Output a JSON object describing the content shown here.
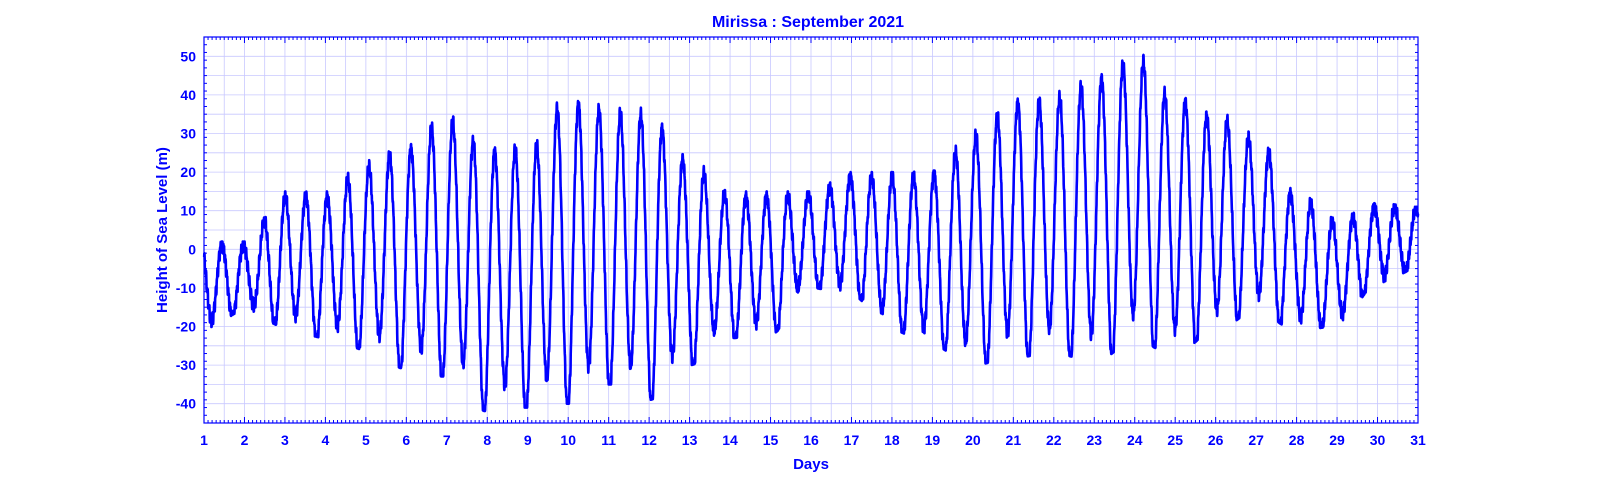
{
  "chart_data": {
    "type": "line",
    "title": "Mirissa  : September 2021",
    "xlabel": "Days",
    "ylabel": "Height of Sea Level (m)",
    "xlim": [
      1,
      31
    ],
    "ylim": [
      -45,
      55
    ],
    "x_ticks": [
      1,
      2,
      3,
      4,
      5,
      6,
      7,
      8,
      9,
      10,
      11,
      12,
      13,
      14,
      15,
      16,
      17,
      18,
      19,
      20,
      21,
      22,
      23,
      24,
      25,
      26,
      27,
      28,
      29,
      30,
      31
    ],
    "y_ticks": [
      -40,
      -30,
      -20,
      -10,
      0,
      10,
      20,
      30,
      40,
      50
    ],
    "grid": true,
    "colors": {
      "series": "#0000ff",
      "grid": "#c8c8ff",
      "axes": "#0000ff"
    },
    "series": [
      {
        "day_extremes": [
          [
            1,
            -21,
            2
          ],
          [
            2,
            -16,
            2
          ],
          [
            3,
            -20,
            15
          ],
          [
            4,
            -23,
            15
          ],
          [
            5,
            -26,
            23
          ],
          [
            6,
            -31,
            28
          ],
          [
            7,
            -33,
            36
          ],
          [
            8,
            -42,
            28
          ],
          [
            9,
            -41,
            28
          ],
          [
            10,
            -40,
            41
          ],
          [
            11,
            -35,
            38
          ],
          [
            12,
            -39,
            37
          ],
          [
            13,
            -30,
            24
          ],
          [
            14,
            -23,
            15
          ],
          [
            15,
            -22,
            15
          ],
          [
            16,
            -10,
            15
          ],
          [
            17,
            -12,
            20
          ],
          [
            18,
            -21,
            20
          ],
          [
            19,
            -25,
            21
          ],
          [
            20,
            -30,
            31
          ],
          [
            21,
            -28,
            40
          ],
          [
            22,
            -27,
            41
          ],
          [
            23,
            -29,
            46
          ],
          [
            24,
            -24,
            52
          ],
          [
            25,
            -27,
            41
          ],
          [
            26,
            -21,
            36
          ],
          [
            27,
            -16,
            30
          ],
          [
            28,
            -21,
            15
          ],
          [
            29,
            -20,
            8
          ],
          [
            30,
            -9,
            12
          ],
          [
            31,
            -5,
            11
          ]
        ]
      }
    ]
  }
}
